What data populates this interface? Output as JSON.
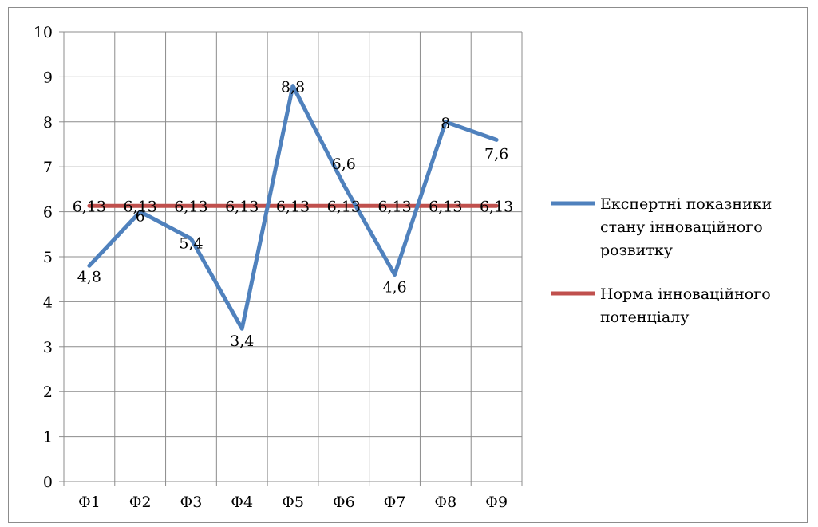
{
  "chart_data": {
    "type": "line",
    "categories": [
      "Ф1",
      "Ф2",
      "Ф3",
      "Ф4",
      "Ф5",
      "Ф6",
      "Ф7",
      "Ф8",
      "Ф9"
    ],
    "series": [
      {
        "name": "Експертні показники стану інноваційного розвитку",
        "values": [
          4.8,
          6,
          5.4,
          3.4,
          8.8,
          6.6,
          4.6,
          8,
          7.6
        ],
        "labels": [
          "4,8",
          "6",
          "5,4",
          "3,4",
          "8,8",
          "6,6",
          "4,6",
          "8",
          "7,6"
        ],
        "color": "#4F81BD"
      },
      {
        "name": "Норма інноваційного потенціалу",
        "values": [
          6.13,
          6.13,
          6.13,
          6.13,
          6.13,
          6.13,
          6.13,
          6.13,
          6.13
        ],
        "labels": [
          "6,13",
          "6,13",
          "6,13",
          "6,13",
          "6,13",
          "6,13",
          "6,13",
          "6,13",
          "6,13"
        ],
        "color": "#C0504D"
      }
    ],
    "ylim": [
      0,
      10
    ],
    "yticks": [
      "0",
      "1",
      "2",
      "3",
      "4",
      "5",
      "6",
      "7",
      "8",
      "9",
      "10"
    ],
    "grid": true,
    "legend_position": "right"
  }
}
